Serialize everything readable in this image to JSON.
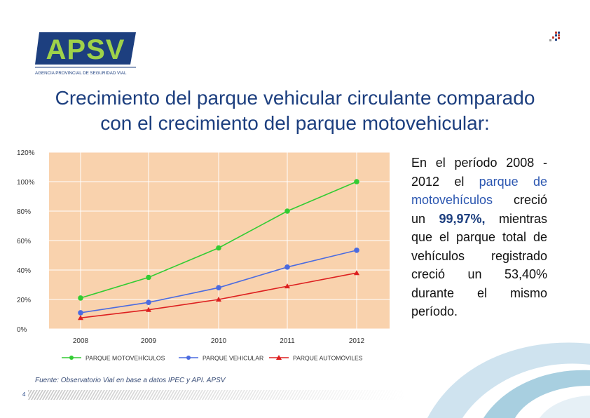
{
  "logo": {
    "text": "APSV",
    "subtitle": "AGENCIA PROVINCIAL DE SEGURIDAD VIAL"
  },
  "title": {
    "line1": "Crecimiento del parque vehicular circulante comparado",
    "line2": "con el crecimiento del parque motovehicular:"
  },
  "side_text": {
    "p1": "En el período 2008 - 2012 el ",
    "p2": "parque de motovehículos",
    "p3": " creció un ",
    "p4": "99,97%,",
    "p5": " mientras que el parque total de vehículos registrado creció un 53,40% durante el mismo período."
  },
  "source": "Fuente: Observatorio Vial en base a datos IPEC y API. APSV",
  "page_number": "4",
  "colors": {
    "plot_bg": "#f9d2ad",
    "green": "#33cc33",
    "blue": "#4b6be0",
    "red": "#dd2020",
    "title": "#1d3f7f"
  },
  "chart_data": {
    "type": "line",
    "categories": [
      "2008",
      "2009",
      "2010",
      "2011",
      "2012"
    ],
    "ylim": [
      0,
      120
    ],
    "yticks": [
      "0%",
      "20%",
      "40%",
      "60%",
      "80%",
      "100%",
      "120%"
    ],
    "grid": true,
    "legend_position": "bottom",
    "series": [
      {
        "name": "PARQUE MOTOVEHÍCULOS",
        "color": "#33cc33",
        "marker": "circle",
        "values": [
          21,
          35,
          55,
          80,
          100
        ]
      },
      {
        "name": "PARQUE VEHICULAR",
        "color": "#4b6be0",
        "marker": "circle",
        "values": [
          11,
          18,
          28,
          42,
          53.4
        ]
      },
      {
        "name": "PARQUE AUTOMÓVILES",
        "color": "#dd2020",
        "marker": "triangle",
        "values": [
          7.5,
          13,
          20,
          29,
          38
        ]
      }
    ]
  }
}
